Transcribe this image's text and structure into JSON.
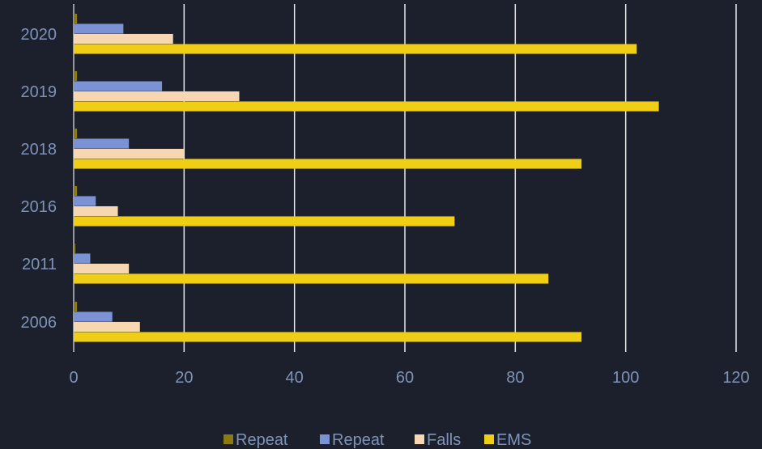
{
  "chart_data": {
    "type": "bar",
    "orientation": "horizontal",
    "categories": [
      "2020",
      "2019",
      "2018",
      "2016",
      "2011",
      "2006"
    ],
    "series": [
      {
        "name": "Repeat",
        "color": "#8b7a12",
        "values": [
          0.6,
          0.6,
          0.6,
          0.6,
          0.3,
          0.6
        ]
      },
      {
        "name": "Repeat",
        "color": "#7b93d4",
        "values": [
          9,
          16,
          10,
          4,
          3,
          7
        ]
      },
      {
        "name": "Falls",
        "color": "#f7d7b2",
        "values": [
          18,
          30,
          20,
          8,
          10,
          12
        ]
      },
      {
        "name": "EMS",
        "color": "#f0ce15",
        "values": [
          102,
          106,
          92,
          69,
          86,
          92
        ]
      }
    ],
    "x_ticks": [
      0,
      20,
      40,
      60,
      80,
      100,
      120
    ],
    "xlim": [
      0,
      120
    ],
    "grid": true,
    "legend_position": "bottom-center"
  }
}
